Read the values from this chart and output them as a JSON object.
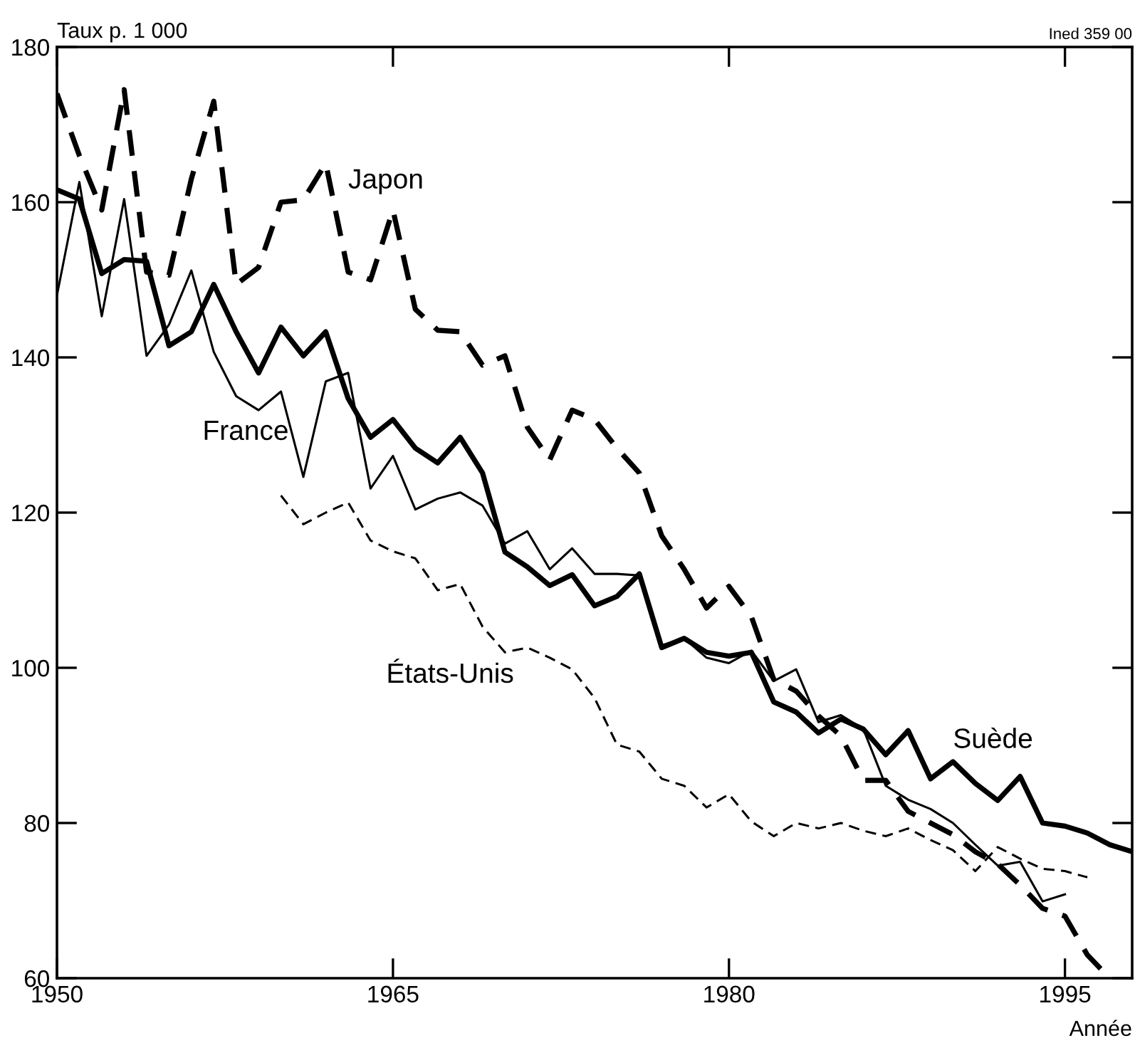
{
  "chart_data": {
    "type": "line",
    "ylabel": "Taux p. 1 000",
    "xlabel": "Année",
    "annotations": [
      "Ined 359 00"
    ],
    "xlim": [
      1950,
      1998
    ],
    "xticks": [
      1950,
      1965,
      1980,
      1995
    ],
    "ylim": [
      60,
      180
    ],
    "yticks": [
      60,
      80,
      100,
      120,
      140,
      160,
      180
    ],
    "grid": false,
    "legend": false,
    "marker": "none",
    "series": [
      {
        "name": "Japon",
        "color": "#000000",
        "line_style": "dashed",
        "x": [
          1950,
          1951,
          1952,
          1953,
          1954,
          1955,
          1956,
          1957,
          1958,
          1959,
          1960,
          1961,
          1962,
          1963,
          1964,
          1965,
          1966,
          1967,
          1968,
          1969,
          1970,
          1971,
          1972,
          1973,
          1974,
          1975,
          1976,
          1977,
          1978,
          1979,
          1980,
          1981,
          1982,
          1983,
          1984,
          1985,
          1986,
          1987,
          1988,
          1989,
          1990,
          1991,
          1992,
          1993,
          1994,
          1995,
          1996,
          1997
        ],
        "values": [
          174,
          166,
          159,
          174.5,
          151,
          150.6,
          163,
          173,
          149.4,
          151.6,
          160,
          160.3,
          165,
          151,
          150,
          159,
          146.2,
          143.5,
          143.3,
          139,
          140.2,
          131,
          126.8,
          133.2,
          132,
          128.3,
          125.1,
          117,
          112.7,
          107.7,
          110.5,
          106.6,
          98.5,
          97,
          93.8,
          91.2,
          85.5,
          85.5,
          81.5,
          80,
          78.5,
          76.3,
          74.7,
          72,
          69,
          68,
          63,
          60
        ]
      },
      {
        "name": "France",
        "color": "#000000",
        "line_style": "solid",
        "x": [
          1950,
          1951,
          1952,
          1953,
          1954,
          1955,
          1956,
          1957,
          1958,
          1959,
          1960,
          1961,
          1962,
          1963,
          1964,
          1965,
          1966,
          1967,
          1968,
          1969,
          1970,
          1971,
          1972,
          1973,
          1974,
          1975,
          1976,
          1977,
          1978,
          1979,
          1980,
          1981,
          1982,
          1983,
          1984,
          1985,
          1986,
          1987,
          1988,
          1989,
          1990,
          1991,
          1992,
          1993,
          1994,
          1995
        ],
        "values": [
          148,
          162.6,
          145.3,
          160.4,
          140.2,
          144.2,
          151.2,
          140.7,
          135,
          133.2,
          135.6,
          124.6,
          136.9,
          138,
          123.1,
          127.3,
          120.4,
          121.8,
          122.6,
          120.9,
          116,
          117.6,
          112.7,
          115.4,
          112.1,
          112.1,
          111.9,
          102.9,
          103.8,
          101.3,
          100.6,
          102.2,
          98.3,
          99.8,
          93,
          93.9,
          92.1,
          84.8,
          83,
          81.8,
          80,
          77.2,
          74.5,
          75,
          69.9,
          70.8
        ]
      },
      {
        "name": "États-Unis",
        "color": "#000000",
        "line_style": "dashed",
        "x": [
          1960,
          1961,
          1962,
          1963,
          1964,
          1965,
          1966,
          1967,
          1968,
          1969,
          1970,
          1971,
          1972,
          1973,
          1974,
          1975,
          1976,
          1977,
          1978,
          1979,
          1980,
          1981,
          1982,
          1983,
          1984,
          1985,
          1986,
          1987,
          1988,
          1989,
          1990,
          1991,
          1992,
          1993,
          1994,
          1995,
          1996
        ],
        "values": [
          122.2,
          118.5,
          120,
          121.3,
          116.4,
          115,
          114.1,
          110,
          110.8,
          105.3,
          102,
          102.6,
          101.3,
          99.8,
          96.1,
          90.1,
          89.2,
          85.7,
          84.8,
          82,
          83.7,
          80.2,
          78.3,
          80,
          79.3,
          80,
          79,
          78.3,
          79.3,
          77.8,
          76.5,
          73.8,
          76.9,
          75.4,
          74.1,
          73.8,
          73
        ]
      },
      {
        "name": "Suède",
        "color": "#000000",
        "line_style": "solid",
        "x": [
          1950,
          1951,
          1952,
          1953,
          1954,
          1955,
          1956,
          1957,
          1958,
          1959,
          1960,
          1961,
          1962,
          1963,
          1964,
          1965,
          1966,
          1967,
          1968,
          1969,
          1970,
          1971,
          1972,
          1973,
          1974,
          1975,
          1976,
          1977,
          1978,
          1979,
          1980,
          1981,
          1982,
          1983,
          1984,
          1985,
          1986,
          1987,
          1988,
          1989,
          1990,
          1991,
          1992,
          1993,
          1994,
          1995,
          1996,
          1997,
          1998
        ],
        "values": [
          161.6,
          160.4,
          150.8,
          152.6,
          152.4,
          141.5,
          143.3,
          149.4,
          143.3,
          138,
          143.9,
          140.2,
          143.3,
          134.7,
          129.7,
          132,
          128.3,
          126.4,
          129.7,
          125.1,
          114.9,
          113,
          110.6,
          112,
          108,
          109.2,
          112.1,
          102.6,
          103.8,
          102,
          101.5,
          102,
          95.6,
          94.3,
          91.6,
          93.4,
          92.1,
          88.8,
          91.9,
          85.7,
          87.9,
          85.1,
          82.9,
          86,
          80,
          79.6,
          78.7,
          77.2,
          76.3
        ]
      }
    ]
  }
}
